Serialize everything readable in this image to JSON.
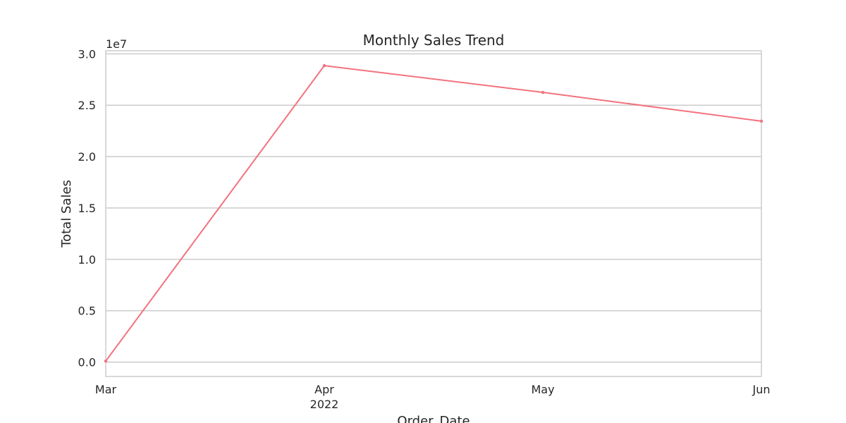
{
  "chart_data": {
    "type": "line",
    "title": "Monthly Sales Trend",
    "xlabel": "Order_Date",
    "ylabel": "Total Sales",
    "y_offset_label": "1e7",
    "x": [
      "2022-03",
      "2022-04",
      "2022-05",
      "2022-06"
    ],
    "x_tick_labels": [
      {
        "month": "Mar",
        "year": ""
      },
      {
        "month": "Apr",
        "year": "2022"
      },
      {
        "month": "May",
        "year": ""
      },
      {
        "month": "Jun",
        "year": ""
      }
    ],
    "y_ticks": [
      "0.0",
      "0.5",
      "1.0",
      "1.5",
      "2.0",
      "2.5",
      "3.0"
    ],
    "ylim": [
      -1400000,
      30300000
    ],
    "grid": true,
    "series": [
      {
        "values": [
          100000,
          28850000,
          26250000,
          23450000
        ],
        "color": "#f2727e"
      }
    ],
    "colors": {
      "grid": "#cccccc",
      "frame": "#cccccc",
      "text": "#262626"
    }
  }
}
